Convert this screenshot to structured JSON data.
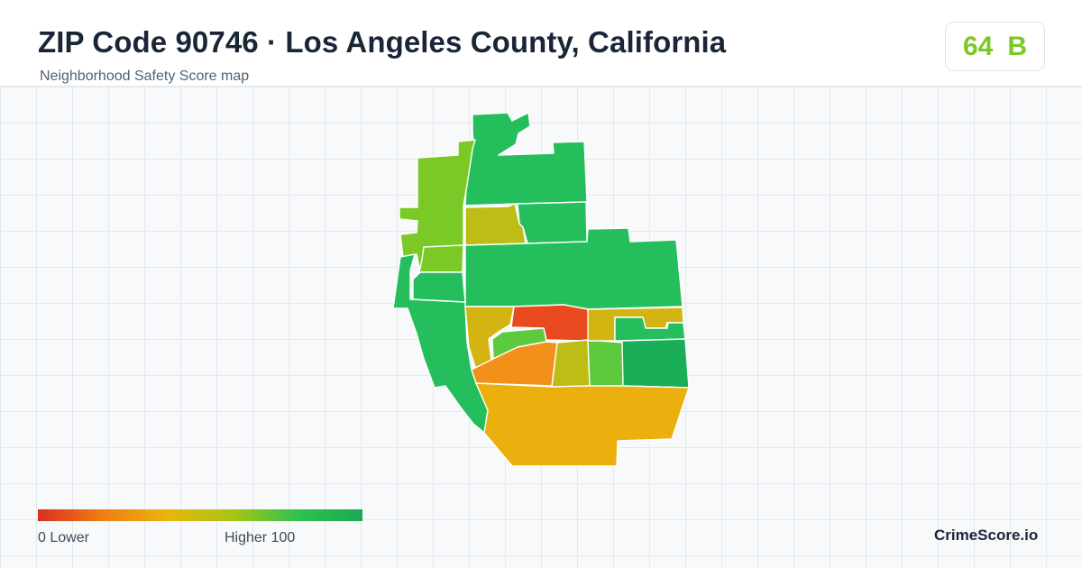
{
  "header": {
    "title": "ZIP Code 90746 · Los Angeles County, California",
    "subtitle": "Neighborhood Safety Score map"
  },
  "score": {
    "value": "64",
    "grade": "B",
    "color": "#7cc826"
  },
  "legend": {
    "low_label": "0  Lower",
    "high_label": "Higher  100",
    "gradient": [
      "#d7301f",
      "#f07d14",
      "#e8b60a",
      "#a8c515",
      "#2fc24e",
      "#18a955"
    ]
  },
  "brand": "CrimeScore.io",
  "colors": {
    "red": "#e8491f",
    "orange": "#f2901a",
    "amber": "#ebb00e",
    "mustard": "#d4b411",
    "olive": "#bdbd15",
    "lime": "#7bc926",
    "light_green": "#5cca3c",
    "green": "#24bf5c",
    "dark_green": "#1aae58"
  }
}
